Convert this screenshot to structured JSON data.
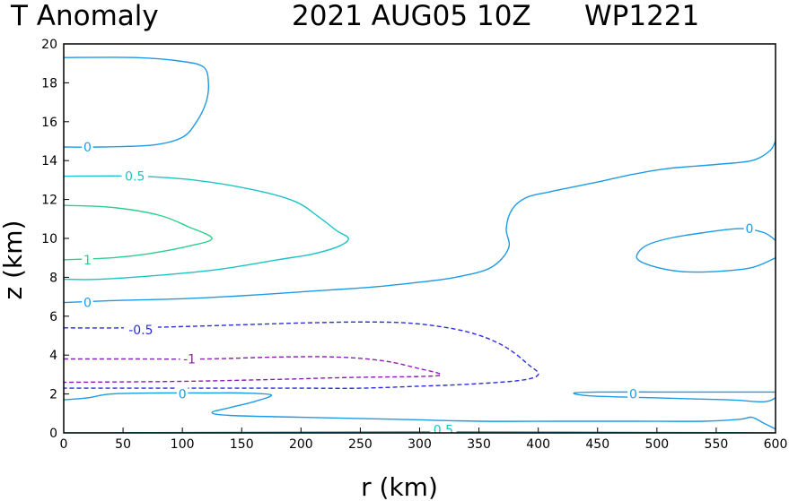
{
  "header": {
    "field": "T Anomaly",
    "time": "2021 AUG05 10Z",
    "storm": "WP1221"
  },
  "colors": {
    "c0": "#1e9be6",
    "c05": "#1ec3c3",
    "c1": "#2ccf8c",
    "cm05": "#2d2ddb",
    "cm1": "#8c1eb4"
  },
  "chart_data": {
    "type": "contour",
    "title": "T Anomaly      2021 AUG05 10Z   WP1221",
    "xlabel": "r (km)",
    "ylabel": "z (km)",
    "xlim": [
      0,
      600
    ],
    "ylim": [
      0,
      20
    ],
    "x_ticks": [
      0,
      50,
      100,
      150,
      200,
      250,
      300,
      350,
      400,
      450,
      500,
      550,
      600
    ],
    "y_ticks": [
      0,
      2,
      4,
      6,
      8,
      10,
      12,
      14,
      16,
      18,
      20
    ],
    "grid": false,
    "legend": "none",
    "contours": [
      {
        "level": 0,
        "style": "solid",
        "color": "#1e9be6",
        "label": "0",
        "label_at": [
          20,
          14.7
        ],
        "points": [
          [
            0,
            14.7
          ],
          [
            30,
            14.7
          ],
          [
            75,
            14.8
          ],
          [
            100,
            15.2
          ],
          [
            112,
            16
          ],
          [
            120,
            17
          ],
          [
            122,
            18
          ],
          [
            118,
            18.8
          ],
          [
            100,
            19.1
          ],
          [
            60,
            19.3
          ],
          [
            0,
            19.3
          ]
        ]
      },
      {
        "level": 0.5,
        "style": "solid",
        "color": "#1ec3c3",
        "label": "0.5",
        "label_at": [
          60,
          13.2
        ],
        "points": [
          [
            0,
            13.2
          ],
          [
            60,
            13.2
          ],
          [
            110,
            13
          ],
          [
            160,
            12.5
          ],
          [
            195,
            11.9
          ],
          [
            215,
            11.1
          ],
          [
            230,
            10.4
          ],
          [
            240,
            10
          ],
          [
            232,
            9.6
          ],
          [
            210,
            9.2
          ],
          [
            180,
            8.9
          ],
          [
            130,
            8.4
          ],
          [
            80,
            8.1
          ],
          [
            30,
            7.9
          ],
          [
            0,
            7.9
          ]
        ]
      },
      {
        "level": 1,
        "style": "solid",
        "color": "#2ccf8c",
        "label": "1",
        "label_at": [
          20,
          8.9
        ],
        "points": [
          [
            0,
            11.7
          ],
          [
            40,
            11.6
          ],
          [
            80,
            11.2
          ],
          [
            105,
            10.6
          ],
          [
            125,
            10
          ],
          [
            105,
            9.6
          ],
          [
            70,
            9.2
          ],
          [
            40,
            9
          ],
          [
            0,
            8.9
          ]
        ]
      },
      {
        "level": 0,
        "style": "solid",
        "color": "#1e9be6",
        "label": "0",
        "label_at": [
          20,
          6.7
        ],
        "points": [
          [
            0,
            6.7
          ],
          [
            40,
            6.8
          ],
          [
            100,
            6.9
          ],
          [
            150,
            7.05
          ],
          [
            200,
            7.25
          ],
          [
            260,
            7.5
          ],
          [
            300,
            7.75
          ],
          [
            330,
            8
          ],
          [
            360,
            8.5
          ],
          [
            375,
            9.5
          ],
          [
            373,
            10.5
          ],
          [
            378,
            11.5
          ],
          [
            390,
            12.1
          ],
          [
            410,
            12.4
          ],
          [
            450,
            12.9
          ],
          [
            480,
            13.3
          ],
          [
            510,
            13.6
          ],
          [
            550,
            13.8
          ],
          [
            580,
            14
          ],
          [
            595,
            14.5
          ],
          [
            600,
            15
          ]
        ]
      },
      {
        "level": 0,
        "style": "solid",
        "color": "#1e9be6",
        "label": "0",
        "label_at": [
          578,
          10.5
        ],
        "points": [
          [
            600,
            9.9
          ],
          [
            590,
            10.3
          ],
          [
            570,
            10.5
          ],
          [
            540,
            10.3
          ],
          [
            510,
            10
          ],
          [
            490,
            9.6
          ],
          [
            483,
            9
          ],
          [
            495,
            8.6
          ],
          [
            520,
            8.3
          ],
          [
            550,
            8.3
          ],
          [
            580,
            8.5
          ],
          [
            600,
            9
          ]
        ]
      },
      {
        "level": -0.5,
        "style": "dashed",
        "color": "#2d2ddb",
        "label": "-0.5",
        "label_at": [
          65,
          5.3
        ],
        "points": [
          [
            0,
            5.4
          ],
          [
            50,
            5.4
          ],
          [
            120,
            5.5
          ],
          [
            200,
            5.65
          ],
          [
            260,
            5.7
          ],
          [
            300,
            5.6
          ],
          [
            340,
            5.2
          ],
          [
            370,
            4.5
          ],
          [
            392,
            3.5
          ],
          [
            400,
            3
          ],
          [
            385,
            2.7
          ],
          [
            340,
            2.5
          ],
          [
            300,
            2.4
          ],
          [
            250,
            2.3
          ],
          [
            200,
            2.3
          ],
          [
            120,
            2.3
          ],
          [
            50,
            2.3
          ],
          [
            0,
            2.3
          ]
        ]
      },
      {
        "level": -1,
        "style": "dashed",
        "color": "#8c1eb4",
        "label": "-1",
        "label_at": [
          106,
          3.8
        ],
        "points": [
          [
            0,
            3.8
          ],
          [
            60,
            3.8
          ],
          [
            120,
            3.8
          ],
          [
            180,
            3.9
          ],
          [
            230,
            3.9
          ],
          [
            270,
            3.7
          ],
          [
            300,
            3.3
          ],
          [
            318,
            3
          ],
          [
            300,
            2.9
          ],
          [
            240,
            2.85
          ],
          [
            180,
            2.75
          ],
          [
            100,
            2.65
          ],
          [
            0,
            2.6
          ]
        ]
      },
      {
        "level": 0,
        "style": "solid",
        "color": "#1e9be6",
        "label": "0",
        "label_at": [
          100,
          2.0
        ],
        "points": [
          [
            0,
            1.7
          ],
          [
            20,
            1.8
          ],
          [
            40,
            2
          ],
          [
            80,
            2.05
          ],
          [
            120,
            2.05
          ],
          [
            150,
            2.05
          ],
          [
            175,
            1.95
          ],
          [
            160,
            1.6
          ],
          [
            140,
            1.3
          ],
          [
            125,
            1.05
          ],
          [
            140,
            0.9
          ],
          [
            200,
            0.8
          ],
          [
            280,
            0.7
          ],
          [
            350,
            0.6
          ],
          [
            420,
            0.6
          ],
          [
            480,
            0.6
          ],
          [
            540,
            0.6
          ],
          [
            570,
            0.7
          ],
          [
            580,
            0.8
          ],
          [
            590,
            0.5
          ],
          [
            600,
            0.2
          ]
        ]
      },
      {
        "level": 0,
        "style": "solid",
        "color": "#1e9be6",
        "label": "0",
        "label_at": [
          480,
          2.0
        ],
        "points": [
          [
            600,
            2.1
          ],
          [
            560,
            2.1
          ],
          [
            500,
            2.1
          ],
          [
            450,
            2.1
          ],
          [
            430,
            2.05
          ],
          [
            445,
            1.9
          ],
          [
            500,
            1.8
          ],
          [
            560,
            1.7
          ],
          [
            590,
            1.6
          ],
          [
            600,
            1.8
          ]
        ]
      },
      {
        "level": 0.5,
        "style": "solid",
        "color": "#1ec3c3",
        "label": "0.5",
        "label_at": [
          320,
          0.15
        ],
        "points": [
          [
            0,
            0
          ],
          [
            150,
            0.03
          ],
          [
            300,
            0.06
          ],
          [
            400,
            0.05
          ],
          [
            470,
            0.03
          ],
          [
            600,
            0
          ]
        ]
      }
    ]
  }
}
